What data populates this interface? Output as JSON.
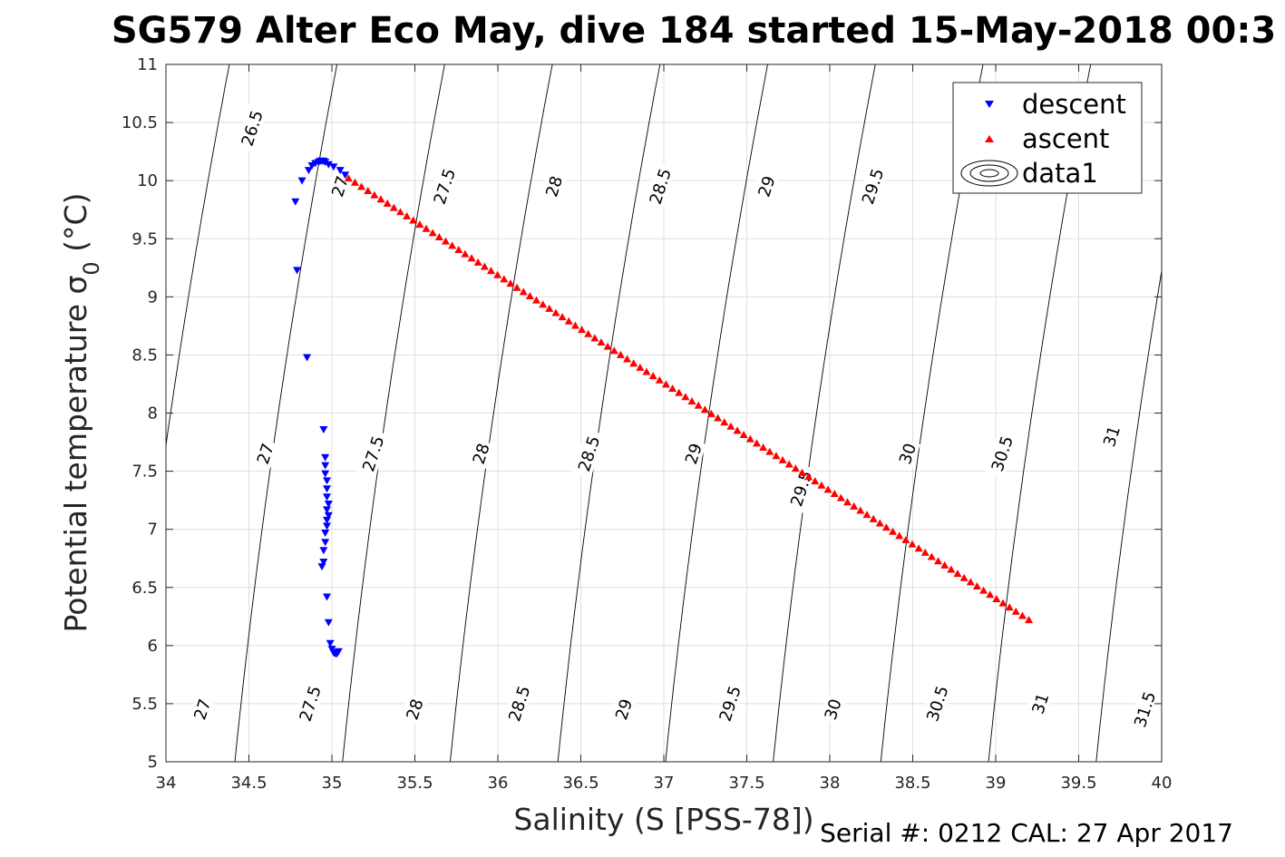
{
  "chart_data": {
    "type": "scatter",
    "title": "SG579 Alter Eco May, dive 184 started 15-May-2018 00:3",
    "xlabel": "Salinity (S [PSS-78])",
    "ylabel": "Potential temperature σ",
    "ylabel_sub": "0",
    "ylabel_unit": " (°C)",
    "xlim": [
      34,
      40
    ],
    "ylim": [
      5,
      11
    ],
    "xticks": [
      "34",
      "34.5",
      "35",
      "35.5",
      "36",
      "36.5",
      "37",
      "37.5",
      "38",
      "38.5",
      "39",
      "39.5",
      "40"
    ],
    "yticks": [
      "5",
      "5.5",
      "6",
      "6.5",
      "7",
      "7.5",
      "8",
      "8.5",
      "9",
      "9.5",
      "10",
      "10.5",
      "11"
    ],
    "grid": true,
    "legend_position": "top-right",
    "legend": [
      "descent",
      "ascent",
      "data1"
    ],
    "series": [
      {
        "name": "descent",
        "marker": "triangle-down",
        "color": "#0000ff",
        "x": [
          34.78,
          34.79,
          34.82,
          34.86,
          34.88,
          34.9,
          34.92,
          34.93,
          34.94,
          34.95,
          34.96,
          34.98,
          35.01,
          35.05,
          35.08,
          34.85,
          34.95,
          34.96,
          34.96,
          34.96,
          34.97,
          34.97,
          34.97,
          34.98,
          34.97,
          34.98,
          34.97,
          34.97,
          34.96,
          34.96,
          34.95,
          34.95,
          34.94,
          34.97,
          34.98,
          34.99,
          35.0,
          35.01,
          35.02,
          35.03,
          35.04
        ],
        "y": [
          9.82,
          9.23,
          10.0,
          10.09,
          10.13,
          10.15,
          10.16,
          10.17,
          10.17,
          10.17,
          10.16,
          10.14,
          10.12,
          10.09,
          10.05,
          8.48,
          7.86,
          7.62,
          7.55,
          7.48,
          7.42,
          7.35,
          7.28,
          7.22,
          7.17,
          7.12,
          7.08,
          7.03,
          6.97,
          6.89,
          6.82,
          6.72,
          6.68,
          6.42,
          6.2,
          6.02,
          5.97,
          5.94,
          5.93,
          5.93,
          5.95
        ]
      },
      {
        "name": "ascent",
        "marker": "triangle-up",
        "color": "#ff0000",
        "x_start": 35.1,
        "x_end": 39.2,
        "y_start": 10.02,
        "y_end": 6.22,
        "count": 106
      },
      {
        "name": "data1",
        "type": "contour",
        "color": "#000000",
        "levels": [
          26.5,
          27,
          27.5,
          28,
          28.5,
          29,
          29.5,
          30,
          30.5,
          31,
          31.5
        ],
        "labels": [
          {
            "text": "26.5",
            "x": 34.52,
            "y": 10.45
          },
          {
            "text": "27",
            "x": 35.05,
            "y": 9.95
          },
          {
            "text": "27.5",
            "x": 35.68,
            "y": 9.95
          },
          {
            "text": "28",
            "x": 36.34,
            "y": 9.95
          },
          {
            "text": "28.5",
            "x": 36.98,
            "y": 9.95
          },
          {
            "text": "29",
            "x": 37.62,
            "y": 9.95
          },
          {
            "text": "29.5",
            "x": 38.26,
            "y": 9.95
          },
          {
            "text": "27",
            "x": 34.6,
            "y": 7.65
          },
          {
            "text": "27.5",
            "x": 35.25,
            "y": 7.65
          },
          {
            "text": "28",
            "x": 35.9,
            "y": 7.65
          },
          {
            "text": "28.5",
            "x": 36.55,
            "y": 7.65
          },
          {
            "text": "29",
            "x": 37.18,
            "y": 7.65
          },
          {
            "text": "29.5",
            "x": 37.83,
            "y": 7.35
          },
          {
            "text": "30",
            "x": 38.47,
            "y": 7.65
          },
          {
            "text": "30.5",
            "x": 39.04,
            "y": 7.65
          },
          {
            "text": "31",
            "x": 39.7,
            "y": 7.8
          },
          {
            "text": "27",
            "x": 34.22,
            "y": 5.45
          },
          {
            "text": "27.5",
            "x": 34.87,
            "y": 5.5
          },
          {
            "text": "28",
            "x": 35.5,
            "y": 5.45
          },
          {
            "text": "28.5",
            "x": 36.13,
            "y": 5.5
          },
          {
            "text": "29",
            "x": 36.76,
            "y": 5.45
          },
          {
            "text": "29.5",
            "x": 37.4,
            "y": 5.5
          },
          {
            "text": "30",
            "x": 38.02,
            "y": 5.45
          },
          {
            "text": "30.5",
            "x": 38.65,
            "y": 5.5
          },
          {
            "text": "31",
            "x": 39.27,
            "y": 5.5
          },
          {
            "text": "31.5",
            "x": 39.9,
            "y": 5.45
          }
        ]
      }
    ],
    "footnote": "Serial #: 0212  CAL: 27 Apr 2017"
  }
}
